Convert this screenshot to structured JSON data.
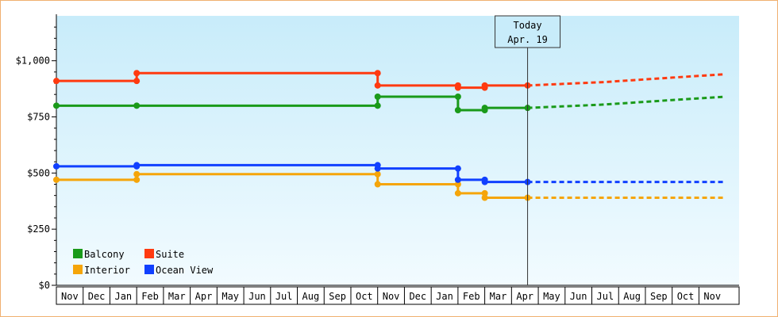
{
  "chart_data": {
    "type": "line",
    "line_style": "step",
    "x_start": "Nov 2023",
    "x_end": "Dec 2025",
    "ylim": [
      0,
      1200
    ],
    "yticks": [
      0,
      250,
      500,
      750,
      1000
    ],
    "ytick_labels": [
      "$0",
      "$250",
      "$500",
      "$750",
      "$1,000"
    ],
    "month_labels": [
      "Nov",
      "Dec",
      "Jan",
      "Feb",
      "Mar",
      "Apr",
      "May",
      "Jun",
      "Jul",
      "Aug",
      "Sep",
      "Oct",
      "Nov",
      "Dec",
      "Jan",
      "Feb",
      "Mar",
      "Apr",
      "May",
      "Jun",
      "Jul",
      "Aug",
      "Sep",
      "Oct",
      "Nov"
    ],
    "today": {
      "date": "2025-04-19",
      "line1": "Today",
      "line2": "Apr. 19"
    },
    "legend_position": "bottom-left",
    "grid": false,
    "background": "light-blue gradient",
    "series": [
      {
        "name": "Balcony",
        "color": "#1a9a1a",
        "points": [
          {
            "date": "2023-11-01",
            "value": 800
          },
          {
            "date": "2024-02-01",
            "value": 800
          },
          {
            "date": "2024-11-01",
            "value": 800
          },
          {
            "date": "2024-11-01",
            "value": 840
          },
          {
            "date": "2025-02-01",
            "value": 840
          },
          {
            "date": "2025-02-01",
            "value": 780
          },
          {
            "date": "2025-03-01",
            "value": 780
          },
          {
            "date": "2025-03-01",
            "value": 790
          },
          {
            "date": "2025-04-19",
            "value": 790
          }
        ],
        "forecast": [
          {
            "date": "2025-04-19",
            "value": 790
          },
          {
            "date": "2025-07-15",
            "value": 805
          },
          {
            "date": "2025-10-01",
            "value": 825
          },
          {
            "date": "2025-12-01",
            "value": 840
          }
        ]
      },
      {
        "name": "Suite",
        "color": "#ff3a10",
        "points": [
          {
            "date": "2023-11-01",
            "value": 910
          },
          {
            "date": "2024-02-01",
            "value": 910
          },
          {
            "date": "2024-02-01",
            "value": 945
          },
          {
            "date": "2024-11-01",
            "value": 945
          },
          {
            "date": "2024-11-01",
            "value": 890
          },
          {
            "date": "2025-02-01",
            "value": 890
          },
          {
            "date": "2025-02-01",
            "value": 880
          },
          {
            "date": "2025-03-01",
            "value": 880
          },
          {
            "date": "2025-03-01",
            "value": 890
          },
          {
            "date": "2025-04-19",
            "value": 890
          }
        ],
        "forecast": [
          {
            "date": "2025-04-19",
            "value": 890
          },
          {
            "date": "2025-07-15",
            "value": 905
          },
          {
            "date": "2025-10-01",
            "value": 925
          },
          {
            "date": "2025-12-01",
            "value": 940
          }
        ]
      },
      {
        "name": "Interior",
        "color": "#f5a50a",
        "points": [
          {
            "date": "2023-11-01",
            "value": 470
          },
          {
            "date": "2024-02-01",
            "value": 470
          },
          {
            "date": "2024-02-01",
            "value": 495
          },
          {
            "date": "2024-11-01",
            "value": 495
          },
          {
            "date": "2024-11-01",
            "value": 450
          },
          {
            "date": "2025-02-01",
            "value": 450
          },
          {
            "date": "2025-02-01",
            "value": 410
          },
          {
            "date": "2025-03-01",
            "value": 410
          },
          {
            "date": "2025-03-01",
            "value": 390
          },
          {
            "date": "2025-04-19",
            "value": 390
          }
        ],
        "forecast": [
          {
            "date": "2025-04-19",
            "value": 390
          },
          {
            "date": "2025-12-01",
            "value": 390
          }
        ]
      },
      {
        "name": "Ocean View",
        "color": "#1040ff",
        "points": [
          {
            "date": "2023-11-01",
            "value": 530
          },
          {
            "date": "2024-02-01",
            "value": 530
          },
          {
            "date": "2024-02-01",
            "value": 535
          },
          {
            "date": "2024-11-01",
            "value": 535
          },
          {
            "date": "2024-11-01",
            "value": 520
          },
          {
            "date": "2025-02-01",
            "value": 520
          },
          {
            "date": "2025-02-01",
            "value": 470
          },
          {
            "date": "2025-03-01",
            "value": 470
          },
          {
            "date": "2025-03-01",
            "value": 460
          },
          {
            "date": "2025-04-19",
            "value": 460
          }
        ],
        "forecast": [
          {
            "date": "2025-04-19",
            "value": 460
          },
          {
            "date": "2025-12-01",
            "value": 460
          }
        ]
      }
    ],
    "legend": [
      {
        "name": "Balcony",
        "color": "#1a9a1a"
      },
      {
        "name": "Suite",
        "color": "#ff3a10"
      },
      {
        "name": "Interior",
        "color": "#f5a50a"
      },
      {
        "name": "Ocean View",
        "color": "#1040ff"
      }
    ]
  }
}
